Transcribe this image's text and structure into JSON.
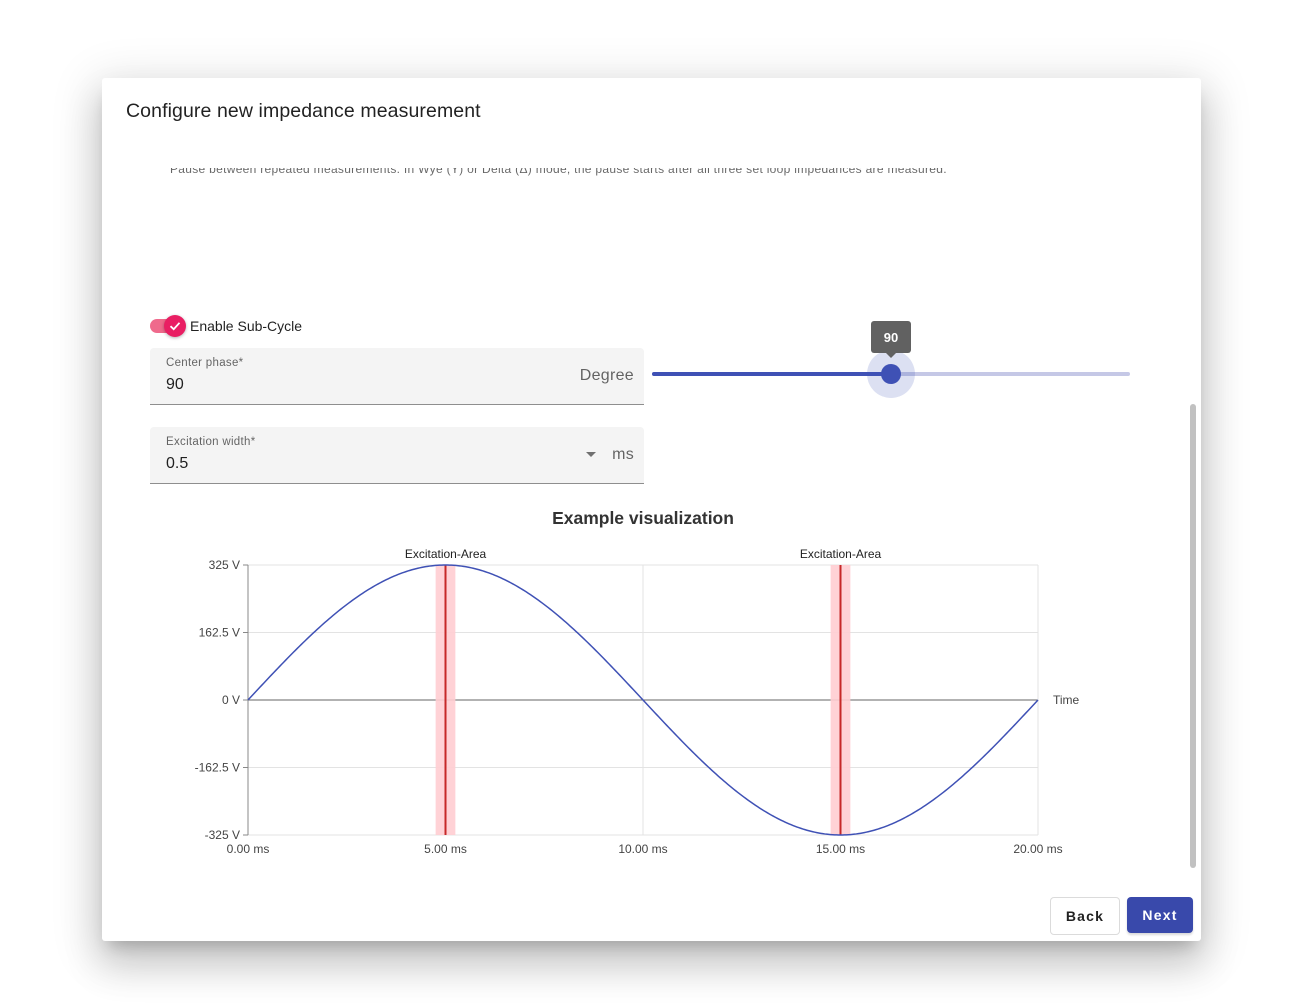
{
  "dialog": {
    "title": "Configure new impedance measurement",
    "hint": "Pause between repeated measurements. In Wye (Y) or Delta (Δ) mode, the pause starts after all three set loop impedances are measured."
  },
  "subcycle": {
    "label": "Enable Sub-Cycle",
    "enabled": true
  },
  "center_phase": {
    "label": "Center phase*",
    "value": "90",
    "suffix": "Degree"
  },
  "slider": {
    "value": 90,
    "min": 0,
    "max": 180,
    "tooltip": "90"
  },
  "excitation_width": {
    "label": "Excitation width*",
    "value": "0.5",
    "suffix": "ms"
  },
  "visualization": {
    "title": "Example visualization"
  },
  "chart_data": {
    "type": "line",
    "title": "Example visualization",
    "x_range_ms": [
      0,
      20
    ],
    "ylim": [
      -325,
      325
    ],
    "y_ticks": [
      "325 V",
      "162.5 V",
      "0 V",
      "-162.5 V",
      "-325 V"
    ],
    "y_tick_values": [
      325,
      162.5,
      0,
      -162.5,
      -325
    ],
    "x_ticks": [
      "0.00 ms",
      "5.00 ms",
      "10.00 ms",
      "15.00 ms",
      "20.00 ms"
    ],
    "x_tick_values": [
      0,
      5,
      10,
      15,
      20
    ],
    "x_axis_label": "Time",
    "series": [
      {
        "function": "325*sin(2*pi*t/20)",
        "amplitude": 325,
        "period_ms": 20,
        "color": "#3f51b5"
      }
    ],
    "excitation_areas": [
      {
        "label": "Excitation-Area",
        "center_ms": 5,
        "width_ms": 0.5
      },
      {
        "label": "Excitation-Area",
        "center_ms": 15,
        "width_ms": 0.5
      }
    ],
    "grid": true
  },
  "buttons": {
    "back": "Back",
    "next": "Next"
  },
  "colors": {
    "primary": "#3f51b5",
    "accent": "#e91e63",
    "excitation_line": "#c62828",
    "excitation_band": "#ffcdd2"
  }
}
